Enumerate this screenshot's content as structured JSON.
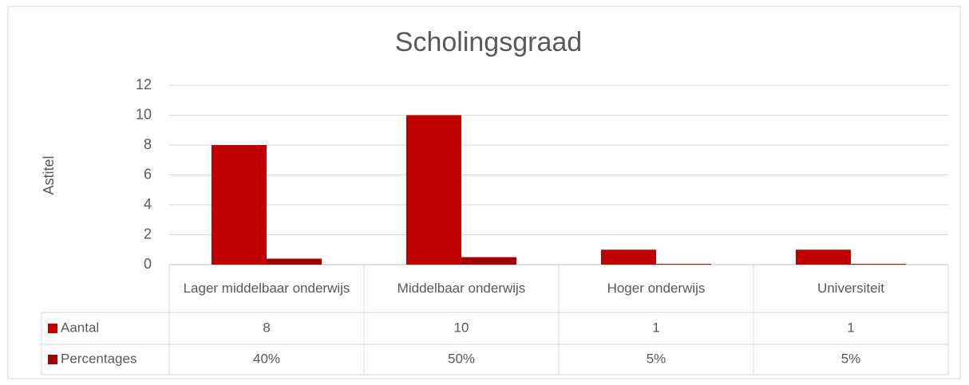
{
  "chart_data": {
    "type": "bar",
    "title": "Scholingsgraad",
    "y_label": "Astitel",
    "categories": [
      "Lager middelbaar onderwijs",
      "Middelbaar onderwijs",
      "Hoger onderwijs",
      "Universiteit"
    ],
    "series": [
      {
        "name": "Aantal",
        "color": "#c00000",
        "values": [
          8,
          10,
          1,
          1
        ]
      },
      {
        "name": "Percentages",
        "color": "#a00000",
        "values": [
          0.4,
          0.5,
          0.05,
          0.05
        ],
        "value_labels": [
          "40%",
          "50%",
          "5%",
          "5%"
        ]
      }
    ],
    "ylim": [
      0,
      12
    ],
    "yticks": [
      0,
      2,
      4,
      6,
      8,
      10,
      12
    ],
    "grid": true
  }
}
